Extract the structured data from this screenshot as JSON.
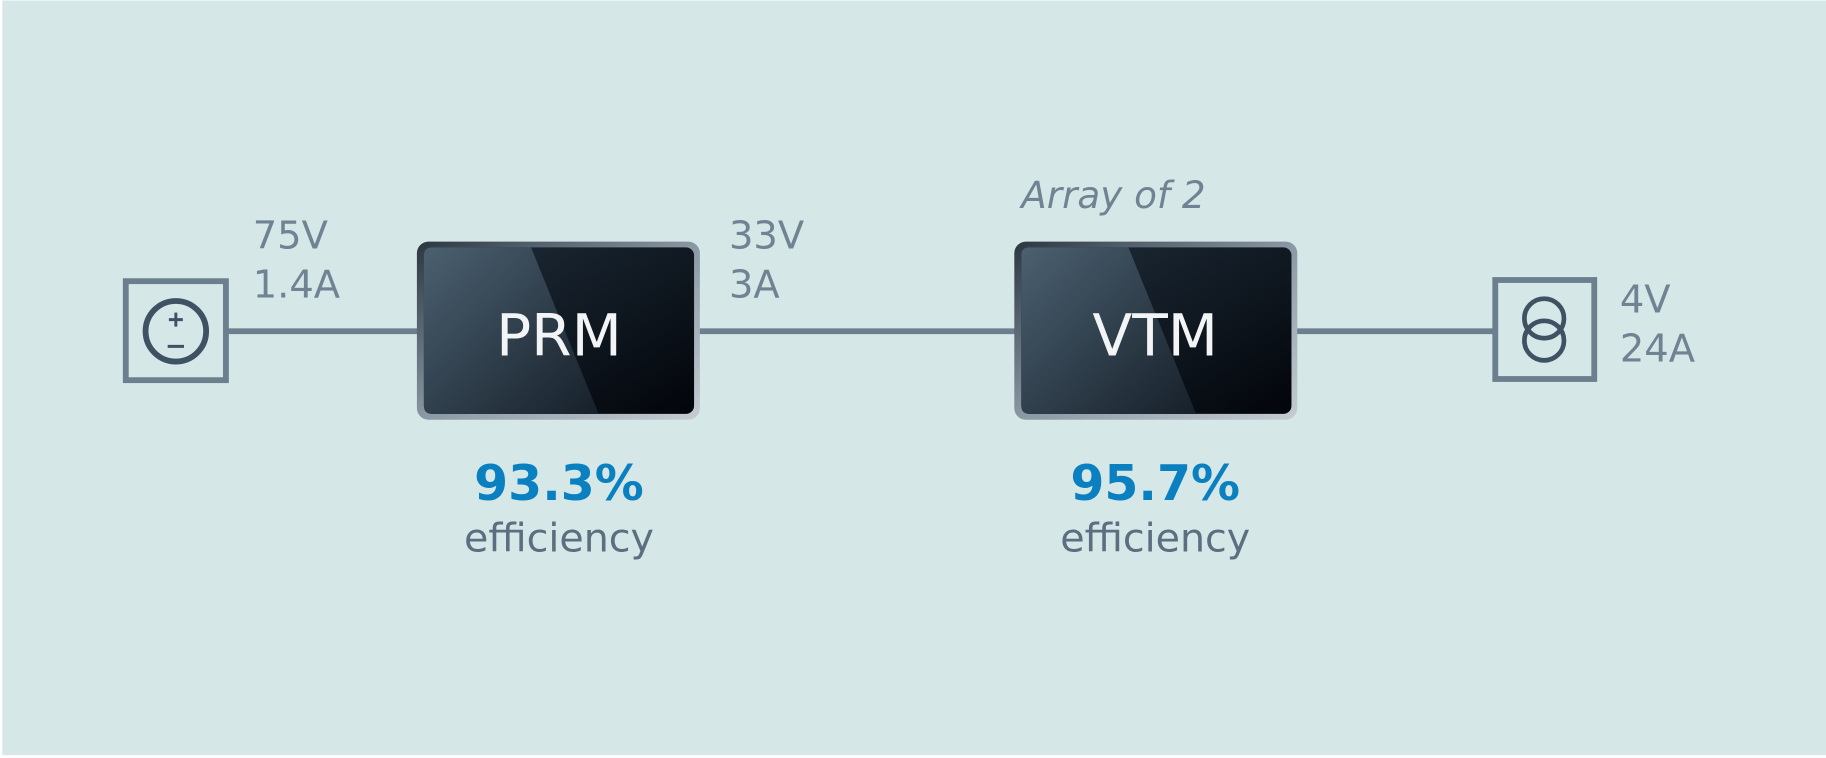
{
  "source": {
    "voltage": "75V",
    "current": "1.4A"
  },
  "modules": [
    {
      "label": "PRM",
      "efficiency": "93.3%",
      "efficiency_caption": "efficiency"
    },
    {
      "label": "VTM",
      "note": "Array of 2",
      "efficiency": "95.7%",
      "efficiency_caption": "efficiency"
    }
  ],
  "bus": {
    "voltage": "33V",
    "current": "3A"
  },
  "load": {
    "voltage": "4V",
    "current": "24A"
  }
}
